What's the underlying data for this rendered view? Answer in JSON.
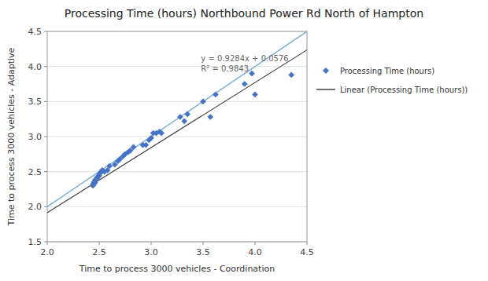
{
  "chart_data": {
    "type": "scatter",
    "title": "Processing Time (hours) Northbound Power Rd North of Hampton",
    "xlabel": "Time to process 3000 vehicles - Coordination",
    "ylabel": "Time to process 3000 vehicles - Adaptive",
    "xlim": [
      2.0,
      4.5
    ],
    "ylim": [
      1.5,
      4.5
    ],
    "xticks": [
      {
        "value": 2.0,
        "label": "2.0"
      },
      2.5,
      {
        "value": 3.0,
        "label": "3.0"
      },
      3.5,
      {
        "value": 4.0,
        "label": "4.0"
      },
      4.5
    ],
    "yticks": [
      1.5,
      {
        "value": 2.0,
        "label": "2.0"
      },
      2.5,
      {
        "value": 3.0,
        "label": "3.0"
      },
      3.5,
      {
        "value": 4.0,
        "label": "4.0"
      },
      4.5
    ],
    "grid": "y",
    "legend": "right",
    "series": [
      {
        "name": "Processing Time (hours)",
        "type": "scatter",
        "color": "#4472C4",
        "marker": "diamond",
        "x": [
          2.44,
          2.44,
          2.45,
          2.46,
          2.46,
          2.47,
          2.48,
          2.48,
          2.5,
          2.5,
          2.51,
          2.52,
          2.53,
          2.55,
          2.58,
          2.6,
          2.65,
          2.68,
          2.7,
          2.73,
          2.75,
          2.78,
          2.8,
          2.83,
          2.92,
          2.95,
          2.98,
          3.0,
          3.02,
          3.05,
          3.08,
          3.1,
          3.28,
          3.32,
          3.35,
          3.5,
          3.57,
          3.62,
          3.9,
          3.97,
          4.0,
          4.35
        ],
        "values": [
          2.3,
          2.32,
          2.35,
          2.34,
          2.38,
          2.38,
          2.42,
          2.4,
          2.44,
          2.46,
          2.48,
          2.5,
          2.52,
          2.5,
          2.52,
          2.58,
          2.6,
          2.65,
          2.68,
          2.72,
          2.75,
          2.78,
          2.8,
          2.85,
          2.88,
          2.88,
          2.95,
          2.98,
          3.05,
          3.05,
          3.07,
          3.05,
          3.28,
          3.22,
          3.32,
          3.5,
          3.28,
          3.6,
          3.75,
          3.9,
          3.6,
          3.88
        ]
      },
      {
        "name": "Linear (Processing Time (hours))",
        "type": "line",
        "color": "#404040",
        "x": [
          2.0,
          4.5
        ],
        "values": [
          1.9144,
          4.2354
        ]
      },
      {
        "type": "line",
        "color": "#7EB0D6",
        "x": [
          2.0,
          4.5
        ],
        "values": [
          2.0,
          4.5
        ]
      }
    ],
    "annotations": [
      {
        "x": 3.48,
        "y": 4.2,
        "lines": [
          "y = 0.9284x + 0.0576",
          "R² = 0.9843"
        ]
      }
    ]
  }
}
